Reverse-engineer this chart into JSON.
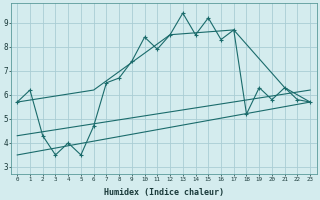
{
  "xlabel": "Humidex (Indice chaleur)",
  "bg_color": "#d4ecee",
  "grid_color": "#aacdd4",
  "line_color": "#1a6b6b",
  "xlim": [
    -0.5,
    23.5
  ],
  "ylim": [
    2.7,
    9.8
  ],
  "yticks": [
    3,
    4,
    5,
    6,
    7,
    8,
    9
  ],
  "xticks": [
    0,
    1,
    2,
    3,
    4,
    5,
    6,
    7,
    8,
    9,
    10,
    11,
    12,
    13,
    14,
    15,
    16,
    17,
    18,
    19,
    20,
    21,
    22,
    23
  ],
  "series1_x": [
    0,
    1,
    2,
    3,
    4,
    5,
    6,
    7,
    8,
    9,
    10,
    11,
    12,
    13,
    14,
    15,
    16,
    17,
    18,
    19,
    20,
    21,
    22,
    23
  ],
  "series1_y": [
    5.7,
    6.2,
    4.3,
    3.5,
    4.0,
    3.5,
    4.7,
    6.5,
    6.7,
    7.4,
    8.4,
    7.9,
    8.5,
    9.4,
    8.5,
    9.2,
    8.3,
    8.7,
    5.2,
    6.3,
    5.8,
    6.3,
    5.8,
    5.7
  ],
  "series2_x": [
    0,
    6,
    12,
    17,
    21,
    23
  ],
  "series2_y": [
    5.7,
    6.2,
    8.5,
    8.7,
    6.3,
    5.7
  ],
  "series3_x": [
    0,
    23
  ],
  "series3_y": [
    3.5,
    5.7
  ],
  "series4_x": [
    0,
    23
  ],
  "series4_y": [
    4.3,
    6.2
  ]
}
